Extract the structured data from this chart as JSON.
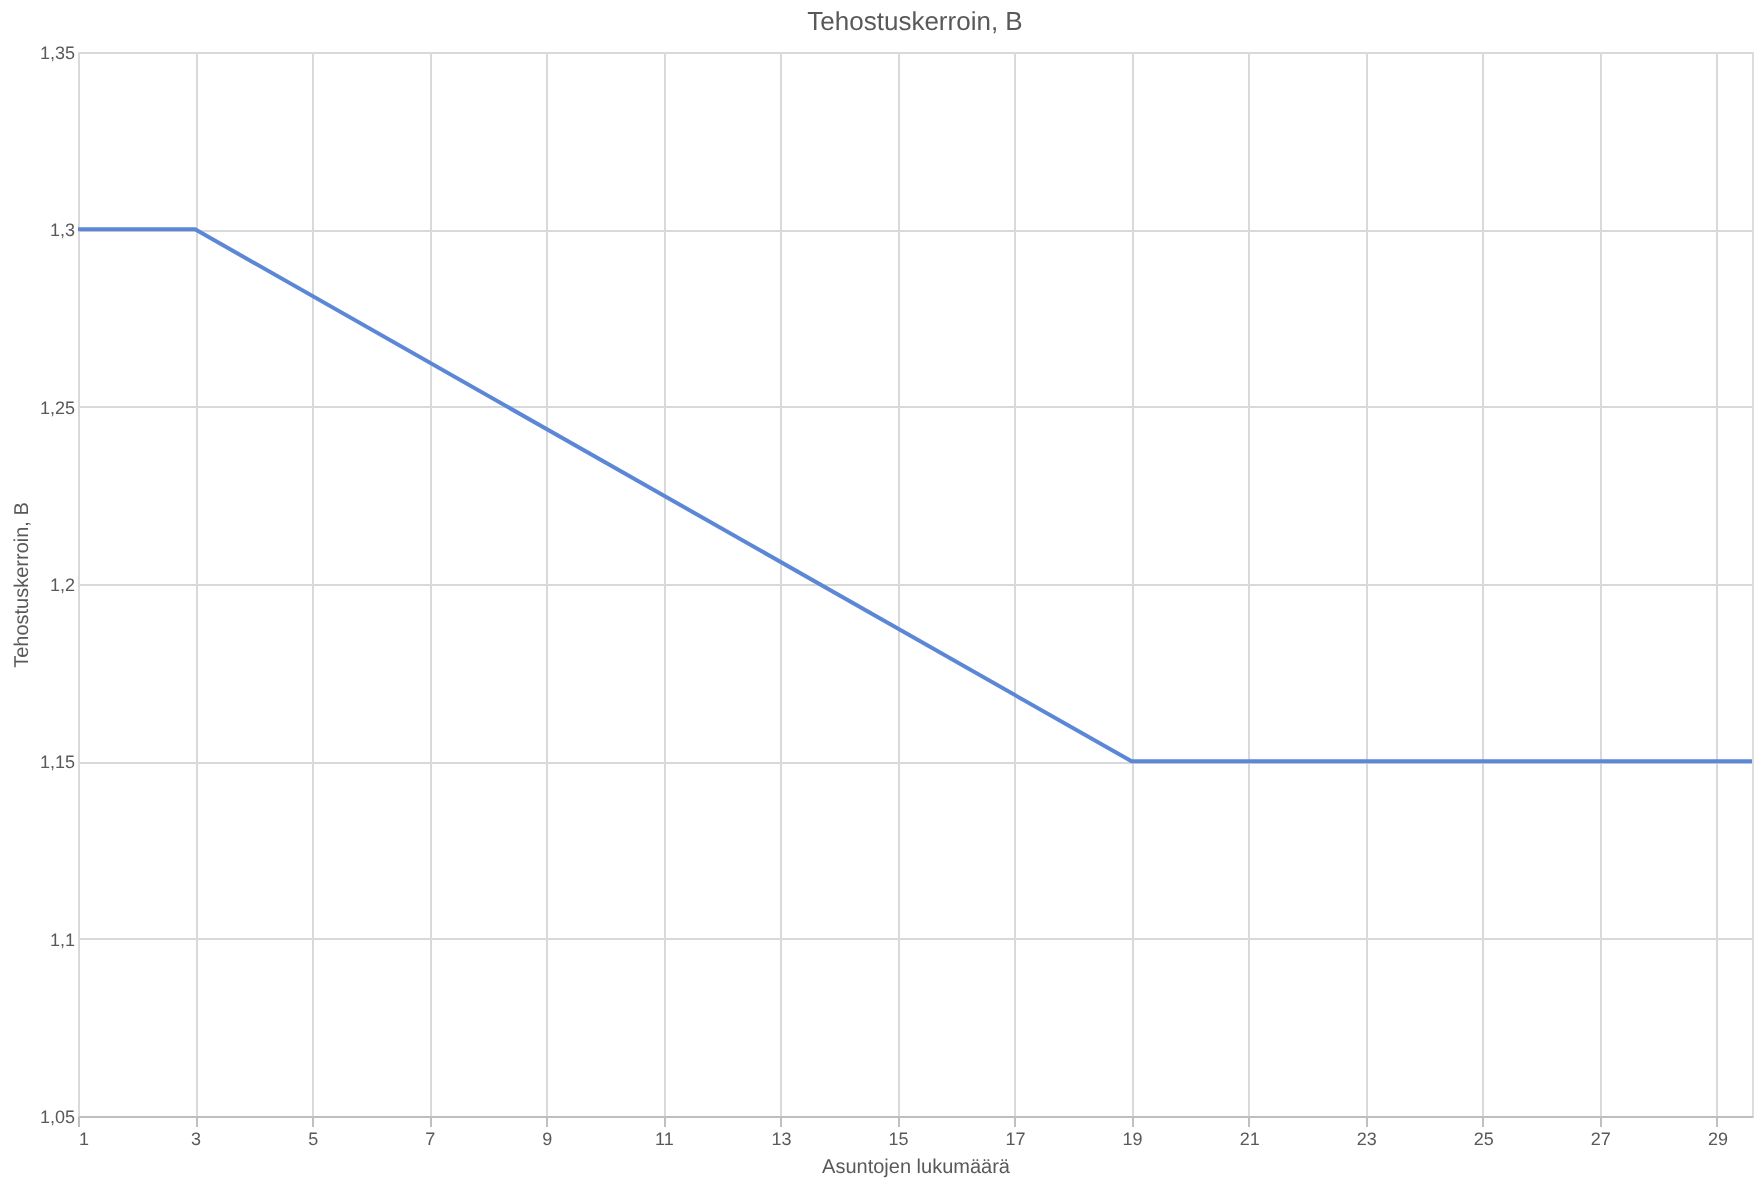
{
  "chart_data": {
    "type": "line",
    "title": "Tehostuskerroin, B",
    "xlabel": "Asuntojen lukumäärä",
    "ylabel": "Tehostuskerroin, B",
    "x": [
      1,
      3,
      19,
      29.6
    ],
    "series": [
      {
        "color": "#5b87d6",
        "values": [
          1.3,
          1.3,
          1.15,
          1.15
        ]
      }
    ],
    "xlim": [
      1,
      29.6
    ],
    "xticks": [
      1,
      3,
      5,
      7,
      9,
      11,
      13,
      15,
      17,
      19,
      21,
      23,
      25,
      27,
      29
    ],
    "ylim": [
      1.05,
      1.35
    ],
    "yticks": [
      {
        "value": 1.05,
        "label": "1,05"
      },
      {
        "value": 1.1,
        "label": "1,1"
      },
      {
        "value": 1.15,
        "label": "1,15"
      },
      {
        "value": 1.2,
        "label": "1,2"
      },
      {
        "value": 1.25,
        "label": "1,25"
      },
      {
        "value": 1.3,
        "label": "1,3"
      },
      {
        "value": 1.35,
        "label": "1,35"
      }
    ],
    "grid": true,
    "legend": false,
    "marker": "none",
    "line_style": "solid"
  }
}
